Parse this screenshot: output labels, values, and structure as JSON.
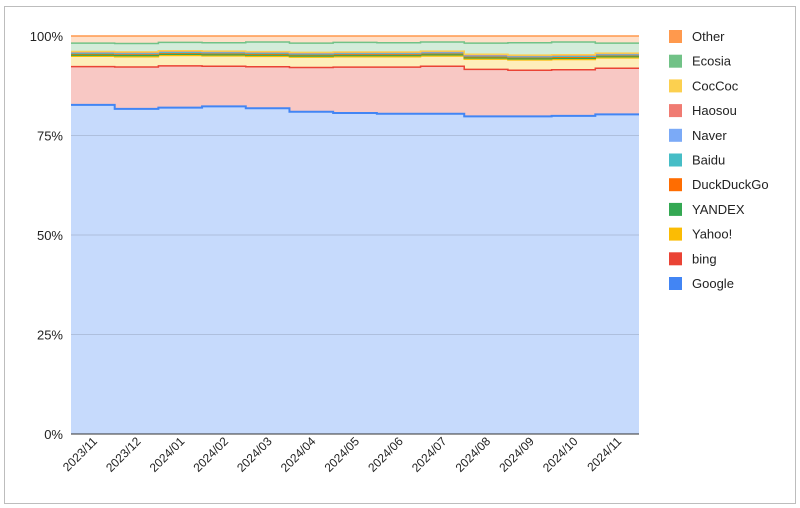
{
  "chart_data": {
    "type": "area",
    "stacked": "percent",
    "step": true,
    "categories": [
      "2023/11",
      "2023/12",
      "2024/01",
      "2024/02",
      "2024/03",
      "2024/04",
      "2024/05",
      "2024/06",
      "2024/07",
      "2024/08",
      "2024/09",
      "2024/10",
      "2024/11"
    ],
    "y_ticks": [
      "0%",
      "25%",
      "50%",
      "75%",
      "100%"
    ],
    "ylim": [
      0,
      100
    ],
    "grid": true,
    "legend_position": "right",
    "series": [
      {
        "name": "Google",
        "color": "#4285F4",
        "fill": "#c6dafc",
        "values": [
          82.7,
          81.7,
          82.0,
          82.4,
          81.6,
          80.8,
          80.5,
          80.4,
          80.3,
          79.8,
          79.8,
          80.0,
          80.4
        ]
      },
      {
        "name": "bing",
        "color": "#EA4335",
        "fill": "#f8c8c4",
        "values": [
          9.6,
          10.5,
          10.5,
          10.1,
          10.4,
          11.1,
          11.5,
          11.7,
          11.9,
          11.8,
          11.6,
          11.6,
          11.6
        ]
      },
      {
        "name": "Yahoo!",
        "color": "#FBBC04",
        "fill": "#feeeba",
        "values": [
          2.6,
          2.6,
          2.6,
          2.6,
          2.6,
          2.6,
          2.6,
          2.6,
          2.6,
          2.6,
          2.6,
          2.6,
          2.6
        ]
      },
      {
        "name": "YANDEX",
        "color": "#34A853",
        "fill": "#c5e5cc",
        "values": [
          0.3,
          0.3,
          0.3,
          0.3,
          0.3,
          0.3,
          0.3,
          0.3,
          0.3,
          0.3,
          0.3,
          0.3,
          0.3
        ]
      },
      {
        "name": "DuckDuckGo",
        "color": "#FF6D01",
        "fill": "#ffd3b2",
        "values": [
          0.3,
          0.3,
          0.3,
          0.3,
          0.3,
          0.3,
          0.3,
          0.3,
          0.3,
          0.3,
          0.3,
          0.3,
          0.3
        ]
      },
      {
        "name": "Baidu",
        "color": "#46BDC6",
        "fill": "#c7ebee",
        "values": [
          0.2,
          0.2,
          0.2,
          0.2,
          0.2,
          0.2,
          0.2,
          0.2,
          0.2,
          0.2,
          0.2,
          0.2,
          0.2
        ]
      },
      {
        "name": "Naver",
        "color": "#7BAAF7",
        "fill": "#d7e5fc",
        "values": [
          0.2,
          0.2,
          0.2,
          0.2,
          0.2,
          0.2,
          0.2,
          0.2,
          0.2,
          0.2,
          0.2,
          0.2,
          0.2
        ]
      },
      {
        "name": "Haosou",
        "color": "#F07B72",
        "fill": "#fad6d3",
        "values": [
          0.1,
          0.1,
          0.1,
          0.1,
          0.1,
          0.1,
          0.1,
          0.1,
          0.1,
          0.1,
          0.1,
          0.1,
          0.1
        ]
      },
      {
        "name": "CocCoc",
        "color": "#FCD04F",
        "fill": "#fef0c5",
        "values": [
          0.1,
          0.1,
          0.1,
          0.1,
          0.1,
          0.1,
          0.1,
          0.1,
          0.1,
          0.1,
          0.1,
          0.1,
          0.1
        ]
      },
      {
        "name": "Ecosia",
        "color": "#71C287",
        "fill": "#d3ecda",
        "values": [
          2.1,
          2.1,
          2.1,
          2.1,
          2.4,
          2.3,
          2.4,
          2.3,
          2.3,
          2.8,
          3.1,
          3.2,
          2.5
        ]
      },
      {
        "name": "Other",
        "color": "#FF994D",
        "fill": "#ffdfc8",
        "values": [
          1.8,
          1.9,
          1.6,
          1.7,
          1.5,
          1.8,
          1.6,
          1.7,
          1.5,
          1.8,
          1.7,
          1.5,
          1.8
        ]
      }
    ]
  }
}
